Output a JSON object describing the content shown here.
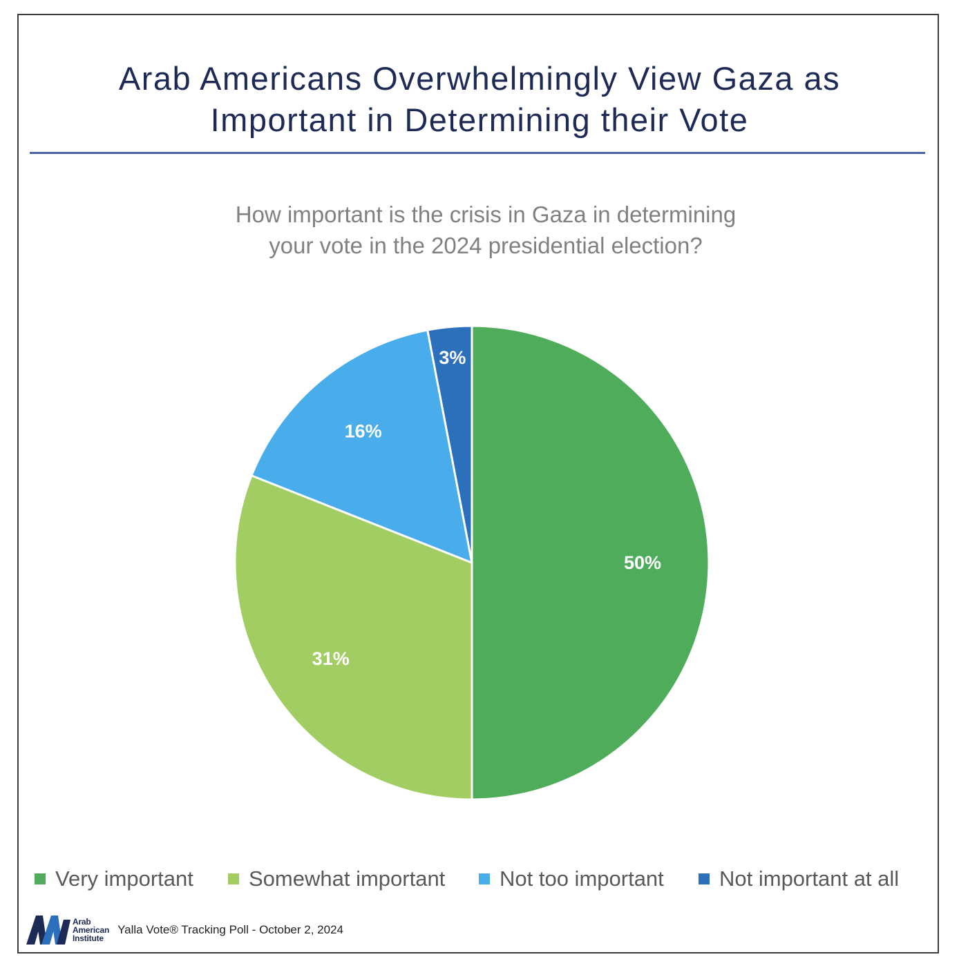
{
  "title_lines": [
    "Arab Americans Overwhelmingly View Gaza as",
    "Important in Determining their Vote"
  ],
  "subtitle_lines": [
    "How important is the crisis in Gaza in determining",
    "your vote in the 2024 presidential election?"
  ],
  "chart_data": {
    "type": "pie",
    "title": "How important is the crisis in Gaza in determining your vote in the 2024 presidential election?",
    "categories": [
      "Very important",
      "Somewhat important",
      "Not too important",
      "Not important at all"
    ],
    "values": [
      50,
      31,
      16,
      3
    ],
    "labels": [
      "50%",
      "31%",
      "16%",
      "3%"
    ],
    "colors": [
      "#4fac5b",
      "#a1cd63",
      "#48adea",
      "#2c6fbb"
    ],
    "start": "12 o'clock, clockwise",
    "legend_position": "bottom"
  },
  "legend": {
    "items": [
      {
        "label": "Very important",
        "color": "#4fac5b"
      },
      {
        "label": "Somewhat important",
        "color": "#a1cd63"
      },
      {
        "label": "Not too important",
        "color": "#48adea"
      },
      {
        "label": "Not important at all",
        "color": "#2c6fbb"
      }
    ]
  },
  "footer": {
    "logo_lines": [
      "Arab",
      "American",
      "Institute"
    ],
    "source": "Yalla Vote® Tracking Poll - October 2, 2024"
  }
}
